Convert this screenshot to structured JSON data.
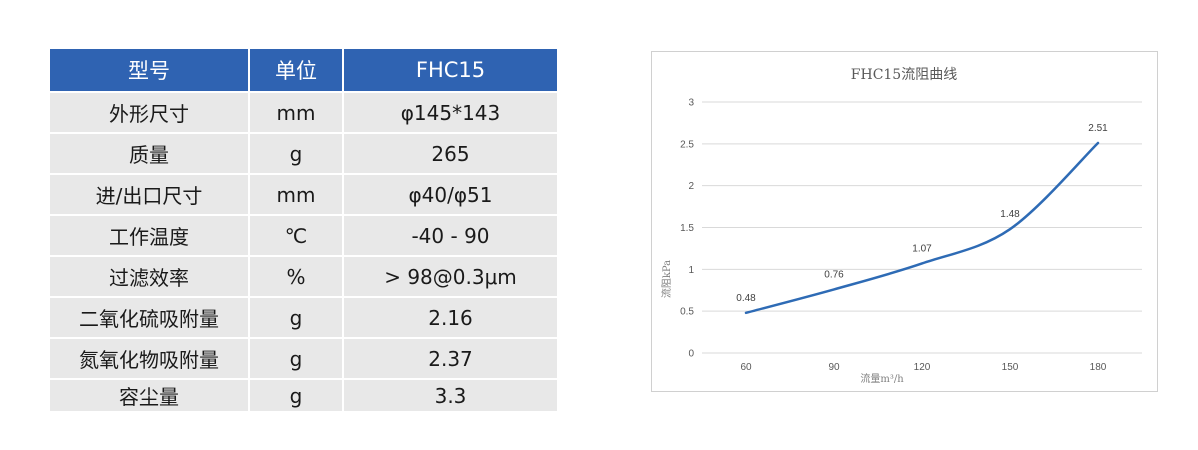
{
  "spec_table": {
    "headers": [
      "型号",
      "单位",
      "FHC15"
    ],
    "rows": [
      [
        "外形尺寸",
        "mm",
        "φ145*143"
      ],
      [
        "质量",
        "g",
        "265"
      ],
      [
        "进/出口尺寸",
        "mm",
        "φ40/φ51"
      ],
      [
        "工作温度",
        "℃",
        "-40 - 90"
      ],
      [
        "过滤效率",
        "%",
        "> 98@0.3μm"
      ],
      [
        "二氧化硫吸附量",
        "g",
        "2.16"
      ],
      [
        "氮氧化物吸附量",
        "g",
        "2.37"
      ],
      [
        "容尘量",
        "g",
        "3.3"
      ]
    ]
  },
  "chart_data": {
    "type": "line",
    "title": "FHC15流阻曲线",
    "xlabel": "流量m³/h",
    "ylabel": "流阻kPa",
    "x": [
      60,
      90,
      120,
      150,
      180
    ],
    "series": [
      {
        "values": [
          0.48,
          0.76,
          1.07,
          1.48,
          2.51
        ],
        "labels": [
          "0.48",
          "0.76",
          "1.07",
          "1.48",
          "2.51"
        ]
      }
    ],
    "y_ticks": [
      "0",
      "0.5",
      "1",
      "1.5",
      "2",
      "2.5",
      "3"
    ],
    "x_ticks": [
      "60",
      "90",
      "120",
      "150",
      "180"
    ],
    "ylim": [
      0,
      3
    ],
    "grid": true,
    "legend": "none",
    "colors": {
      "line": "#2e6bb5",
      "grid": "#d9d9d9",
      "header_bg": "#2f63b2",
      "cell_bg": "#e8e8e8"
    }
  }
}
